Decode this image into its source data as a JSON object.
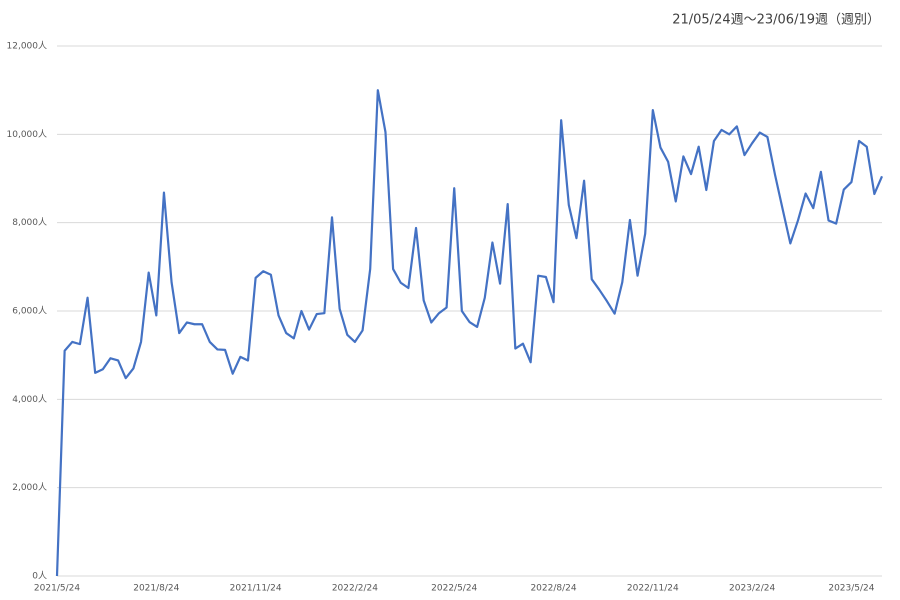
{
  "chart_data": {
    "type": "line",
    "title": "21/05/24週～23/06/19週（週別）",
    "categories": [
      "2021/5/24",
      null,
      null,
      null,
      null,
      null,
      null,
      null,
      null,
      null,
      null,
      null,
      null,
      "2021/8/24",
      null,
      null,
      null,
      null,
      null,
      null,
      null,
      null,
      null,
      null,
      null,
      null,
      "2021/11/24",
      null,
      null,
      null,
      null,
      null,
      null,
      null,
      null,
      null,
      null,
      null,
      null,
      "2022/2/24",
      null,
      null,
      null,
      null,
      null,
      null,
      null,
      null,
      null,
      null,
      null,
      null,
      "2022/5/24",
      null,
      null,
      null,
      null,
      null,
      null,
      null,
      null,
      null,
      null,
      null,
      null,
      "2022/8/24",
      null,
      null,
      null,
      null,
      null,
      null,
      null,
      null,
      null,
      null,
      null,
      null,
      "2022/11/24",
      null,
      null,
      null,
      null,
      null,
      null,
      null,
      null,
      null,
      null,
      null,
      null,
      "2023/2/24",
      null,
      null,
      null,
      null,
      null,
      null,
      null,
      null,
      null,
      null,
      null,
      null,
      "2023/5/24",
      null,
      null,
      null,
      null
    ],
    "series": [
      {
        "name": null,
        "color": "#4472c4",
        "values": [
          0,
          5100,
          5300,
          5250,
          6300,
          4600,
          4680,
          4930,
          4880,
          4480,
          4700,
          5300,
          6870,
          5900,
          8680,
          6650,
          5500,
          5740,
          5700,
          5700,
          5300,
          5130,
          5120,
          4580,
          4960,
          4880,
          6750,
          6900,
          6820,
          5900,
          5500,
          5380,
          6000,
          5580,
          5930,
          5950,
          8120,
          6050,
          5460,
          5300,
          5560,
          6950,
          11000,
          10050,
          6950,
          6640,
          6520,
          7880,
          6240,
          5740,
          5950,
          6080,
          8780,
          6000,
          5750,
          5640,
          6300,
          7550,
          6620,
          8420,
          5150,
          5260,
          4840,
          6800,
          6770,
          6200,
          10320,
          8400,
          7650,
          8950,
          6720,
          6480,
          6220,
          5940,
          6650,
          8060,
          6800,
          7750,
          10550,
          9700,
          9380,
          8480,
          9500,
          9100,
          9720,
          8740,
          9850,
          10100,
          10000,
          10180,
          9530,
          9800,
          10040,
          9940,
          9080,
          8300,
          7530,
          8050,
          8660,
          8330,
          9150,
          8050,
          7980,
          8750,
          8920,
          9850,
          9720,
          8650,
          9050
        ]
      }
    ],
    "ylim": [
      0,
      12000
    ],
    "yticks": [
      {
        "value": 0,
        "label": "0人"
      },
      {
        "value": 2000,
        "label": "2,000人"
      },
      {
        "value": 4000,
        "label": "4,000人"
      },
      {
        "value": 6000,
        "label": "6,000人"
      },
      {
        "value": 8000,
        "label": "8,000人"
      },
      {
        "value": 10000,
        "label": "10,000人"
      },
      {
        "value": 12000,
        "label": "12,000人"
      }
    ],
    "grid": true
  }
}
